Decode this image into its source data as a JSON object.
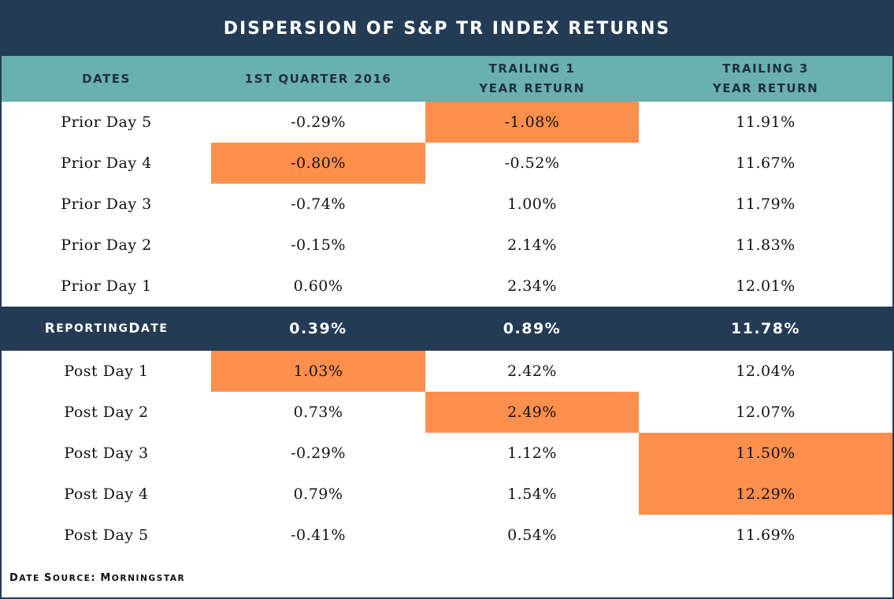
{
  "chart_data": {
    "type": "table",
    "title": "DISPERSION OF S&P TR INDEX RETURNS",
    "columns": [
      "DATES",
      "1ST QUARTER 2016",
      "TRAILING 1\nYEAR RETURN",
      "TRAILING 3\nYEAR RETURN"
    ],
    "rows": [
      {
        "label": "Prior Day 5",
        "values": [
          "-0.29%",
          "-1.08%",
          "11.91%"
        ],
        "highlight": [
          false,
          true,
          false
        ]
      },
      {
        "label": "Prior Day 4",
        "values": [
          "-0.80%",
          "-0.52%",
          "11.67%"
        ],
        "highlight": [
          true,
          false,
          false
        ]
      },
      {
        "label": "Prior Day 3",
        "values": [
          "-0.74%",
          "1.00%",
          "11.79%"
        ],
        "highlight": [
          false,
          false,
          false
        ]
      },
      {
        "label": "Prior Day 2",
        "values": [
          "-0.15%",
          "2.14%",
          "11.83%"
        ],
        "highlight": [
          false,
          false,
          false
        ]
      },
      {
        "label": "Prior Day 1",
        "values": [
          "0.60%",
          "2.34%",
          "12.01%"
        ],
        "highlight": [
          false,
          false,
          false
        ]
      },
      {
        "label": "Reporting Date",
        "values": [
          "0.39%",
          "0.89%",
          "11.78%"
        ],
        "highlight": [
          false,
          false,
          false
        ],
        "emphasis": true
      },
      {
        "label": "Post Day 1",
        "values": [
          "1.03%",
          "2.42%",
          "12.04%"
        ],
        "highlight": [
          true,
          false,
          false
        ]
      },
      {
        "label": "Post Day 2",
        "values": [
          "0.73%",
          "2.49%",
          "12.07%"
        ],
        "highlight": [
          false,
          true,
          false
        ]
      },
      {
        "label": "Post Day 3",
        "values": [
          "-0.29%",
          "1.12%",
          "11.50%"
        ],
        "highlight": [
          false,
          false,
          true
        ]
      },
      {
        "label": "Post Day 4",
        "values": [
          "0.79%",
          "1.54%",
          "12.29%"
        ],
        "highlight": [
          false,
          false,
          true
        ]
      },
      {
        "label": "Post Day 5",
        "values": [
          "-0.41%",
          "0.54%",
          "11.69%"
        ],
        "highlight": [
          false,
          false,
          false
        ]
      }
    ],
    "source": "Date Source: Morningstar"
  },
  "colors": {
    "title_bg": "#243b55",
    "header_bg": "#6ab0ae",
    "highlight": "#ff8f4d"
  }
}
